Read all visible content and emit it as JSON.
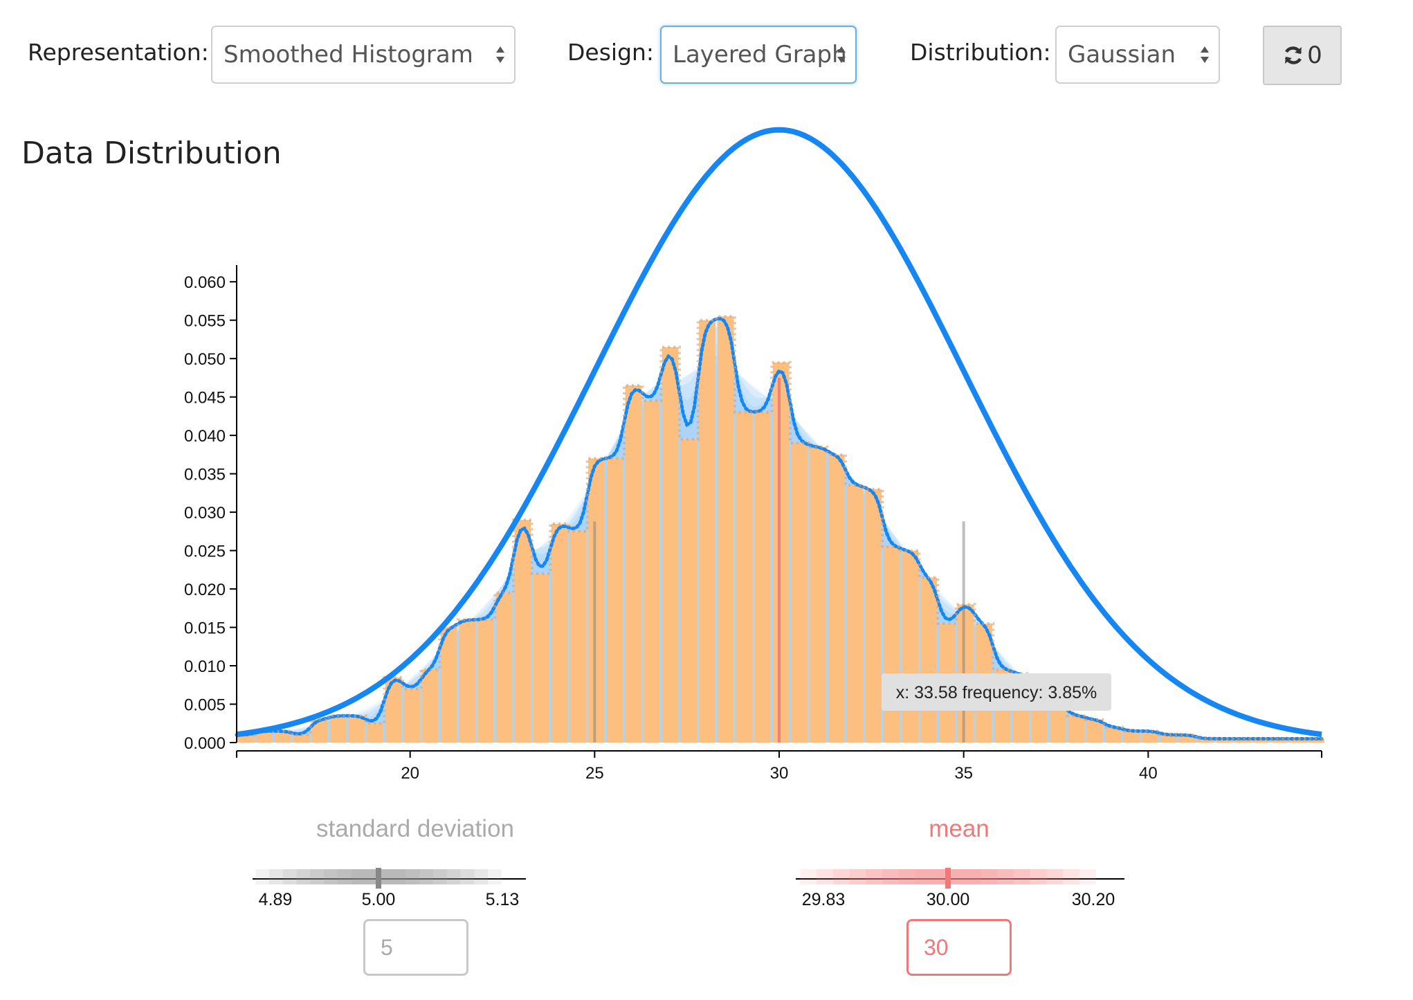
{
  "controls": {
    "representation_label": "Representation:",
    "representation_value": "Smoothed Histogram",
    "design_label": "Design:",
    "design_value": "Layered Graph",
    "distribution_label": "Distribution:",
    "distribution_value": "Gaussian",
    "reset_count": "0",
    "reset_icon": "refresh-icon"
  },
  "page_title": "Data Distribution",
  "tooltip": "x: 33.58 frequency: 3.85%",
  "std_panel": {
    "title": "standard deviation",
    "ticks": [
      "4.89",
      "5.00",
      "5.13"
    ],
    "input_value": "5",
    "color": "#aaaaaa"
  },
  "mean_panel": {
    "title": "mean",
    "ticks": [
      "29.83",
      "30.00",
      "30.20"
    ],
    "input_value": "30",
    "color": "#f07878"
  },
  "colors": {
    "bar": "#fdbf80",
    "density": "#1687f2",
    "band": "#7fbdf5",
    "reference": "#7d7d7d",
    "mean_line": "#f07878",
    "focus": "#66afe9"
  },
  "chart_data": {
    "type": "bar",
    "title": "",
    "xlabel": "",
    "ylabel": "",
    "xlim": [
      15.3,
      44.7
    ],
    "ylim": [
      0,
      0.062
    ],
    "x_ticks": [
      "20",
      "25",
      "30",
      "35",
      "40"
    ],
    "y_ticks": [
      "0.000",
      "0.005",
      "0.010",
      "0.015",
      "0.020",
      "0.025",
      "0.030",
      "0.035",
      "0.040",
      "0.045",
      "0.050",
      "0.055",
      "0.060"
    ],
    "bin_width": 0.5,
    "bin_starts": [
      15.3,
      15.8,
      16.3,
      16.8,
      17.3,
      17.8,
      18.3,
      18.8,
      19.3,
      19.8,
      20.3,
      20.8,
      21.3,
      21.8,
      22.3,
      22.8,
      23.3,
      23.8,
      24.3,
      24.8,
      25.3,
      25.8,
      26.3,
      26.8,
      27.3,
      27.8,
      28.3,
      28.8,
      29.3,
      29.8,
      30.3,
      30.8,
      31.3,
      31.8,
      32.3,
      32.8,
      33.3,
      33.8,
      34.3,
      34.8,
      35.3,
      35.8,
      36.3,
      36.8,
      37.3,
      37.8,
      38.3,
      38.8,
      39.3,
      39.8,
      40.3,
      40.8,
      41.3,
      41.8,
      42.3,
      42.8,
      43.3,
      43.8,
      44.3
    ],
    "series": [
      {
        "name": "",
        "values": [
          0.001,
          0.0015,
          0.0015,
          0.001,
          0.003,
          0.0035,
          0.0035,
          0.0025,
          0.0085,
          0.007,
          0.0095,
          0.015,
          0.016,
          0.016,
          0.0195,
          0.029,
          0.022,
          0.0285,
          0.0275,
          0.037,
          0.037,
          0.0465,
          0.0445,
          0.0515,
          0.0395,
          0.055,
          0.0555,
          0.043,
          0.043,
          0.0495,
          0.039,
          0.0385,
          0.0375,
          0.0335,
          0.033,
          0.0255,
          0.025,
          0.0215,
          0.0155,
          0.018,
          0.0155,
          0.0095,
          0.009,
          0.006,
          0.005,
          0.0035,
          0.003,
          0.002,
          0.0015,
          0.0015,
          0.001,
          0.001,
          0.0005,
          0.0005,
          0.0005,
          0.0005,
          0.0005,
          0.0005,
          0.0005
        ]
      }
    ],
    "reference_curve": {
      "mean": 30,
      "sd": 5
    },
    "markers": {
      "mean_line": 30,
      "sd_lines": [
        25,
        35
      ]
    },
    "grid": false
  }
}
